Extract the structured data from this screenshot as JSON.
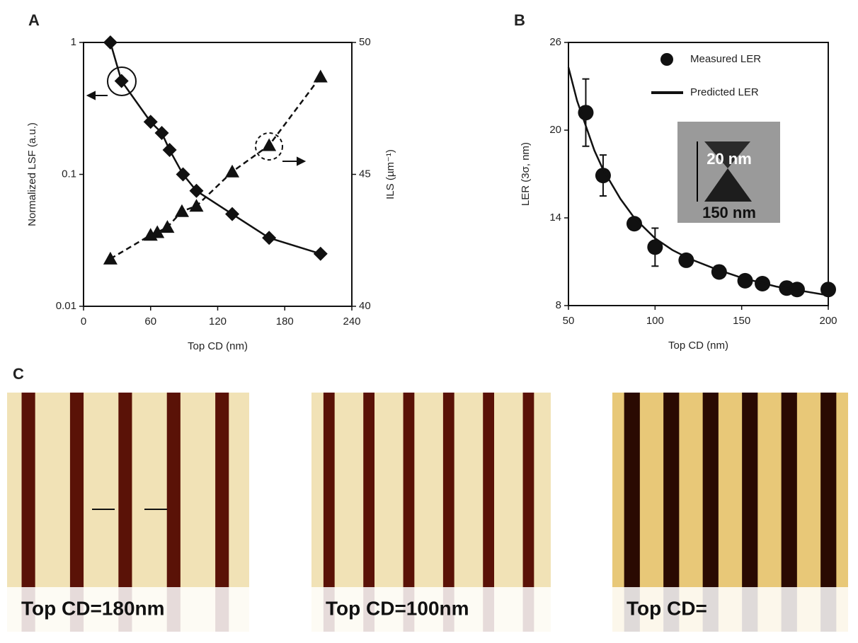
{
  "panels": {
    "a": "A",
    "b": "B",
    "c": "C"
  },
  "chart_data": [
    {
      "type": "line",
      "xlabel": "Top CD (nm)",
      "ylabel": "Normalized LSF (a.u.)",
      "y2label": "ILS (µm⁻¹)",
      "xlim": [
        0,
        240
      ],
      "xticks": [
        0,
        60,
        120,
        180,
        240
      ],
      "ylim": [
        0.01,
        1
      ],
      "yticks": [
        0.01,
        0.1,
        1
      ],
      "yscale": "log",
      "y2lim": [
        40,
        50
      ],
      "y2ticks": [
        40,
        45,
        50
      ],
      "series": [
        {
          "color": "#111111",
          "marker": "diamond",
          "linestyle": "solid",
          "x": [
            24,
            34,
            60,
            70,
            77,
            89,
            101,
            133,
            166,
            212
          ],
          "values": [
            1,
            0.51,
            0.25,
            0.206,
            0.153,
            0.1,
            0.075,
            0.05,
            0.033,
            0.025
          ]
        },
        {
          "color": "#111111",
          "marker": "triangle",
          "linestyle": "dashed",
          "axis": "y2",
          "x": [
            24,
            60,
            66,
            75,
            88,
            101,
            133,
            166,
            212
          ],
          "values": [
            41.8,
            42.7,
            42.8,
            43.0,
            43.6,
            43.8,
            45.1,
            46.1,
            48.7
          ]
        }
      ]
    },
    {
      "type": "line",
      "xlabel": "Top CD (nm)",
      "ylabel": "LER (3σ, nm)",
      "xlim": [
        50,
        200
      ],
      "xticks": [
        50,
        100,
        150,
        200
      ],
      "ylim": [
        8,
        26
      ],
      "yticks": [
        8,
        14,
        20,
        26
      ],
      "series": [
        {
          "name": "Measured LER",
          "color": "#111111",
          "marker": "circle",
          "linestyle": "none",
          "x": [
            60,
            70,
            88,
            100,
            118,
            137,
            152,
            162,
            176,
            182,
            200
          ],
          "values": [
            21.2,
            16.9,
            13.6,
            12.0,
            11.1,
            10.3,
            9.7,
            9.5,
            9.2,
            9.1,
            9.1
          ],
          "errors": [
            2.3,
            1.4,
            null,
            1.3,
            null,
            null,
            null,
            null,
            null,
            null,
            null
          ]
        },
        {
          "name": "Predicted LER",
          "color": "#111111",
          "marker": "none",
          "linestyle": "solid",
          "x": [
            50,
            55,
            60,
            65,
            70,
            80,
            88,
            100,
            110,
            120,
            135,
            150,
            170,
            200
          ],
          "values": [
            24.3,
            22.0,
            20.3,
            18.6,
            17.3,
            15.3,
            14.0,
            12.6,
            11.8,
            11.2,
            10.5,
            9.9,
            9.3,
            8.7
          ]
        }
      ],
      "inset_labels": [
        "20 nm",
        "150 nm"
      ]
    }
  ],
  "images": [
    {
      "caption": "Top CD=180nm"
    },
    {
      "caption": "Top CD=100nm"
    },
    {
      "caption": "Top CD="
    }
  ]
}
